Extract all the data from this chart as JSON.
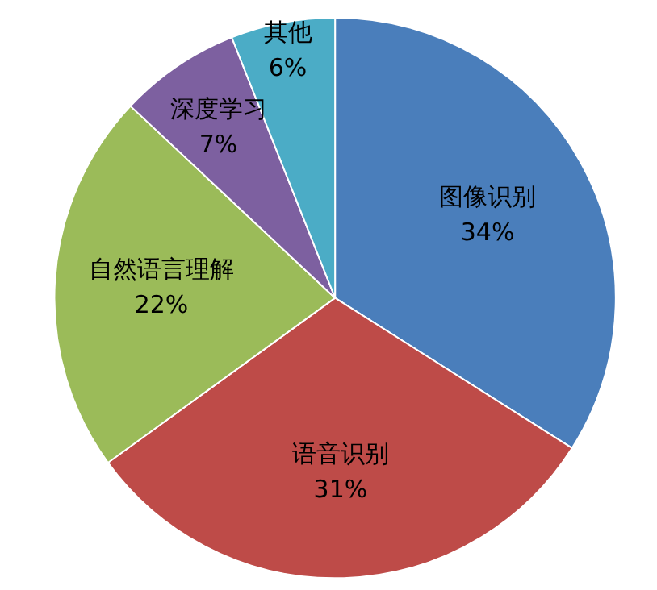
{
  "chart_data": {
    "type": "pie",
    "categories": [
      "图像识别",
      "语音识别",
      "自然语言理解",
      "深度学习",
      "其他"
    ],
    "values": [
      34,
      31,
      22,
      7,
      6
    ],
    "value_labels": [
      "34%",
      "31%",
      "22%",
      "7%",
      "6%"
    ],
    "colors": [
      "#4a7ebb",
      "#be4b48",
      "#9bbb59",
      "#7d60a0",
      "#4bacc6"
    ],
    "legend": false
  }
}
